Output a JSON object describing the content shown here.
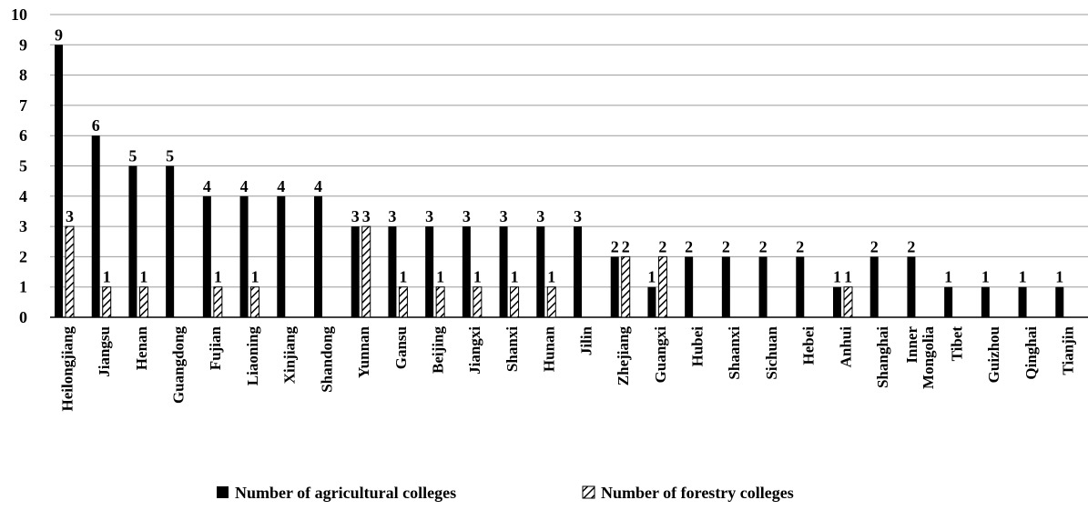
{
  "chart_data": {
    "type": "bar",
    "title": "",
    "xlabel": "",
    "ylabel": "",
    "ylim": [
      0,
      10
    ],
    "yticks": [
      0,
      1,
      2,
      3,
      4,
      5,
      6,
      7,
      8,
      9,
      10
    ],
    "grid": "horizontal",
    "legend_position": "bottom",
    "categories": [
      "Heilongjiang",
      "Jiangsu",
      "Henan",
      "Guangdong",
      "Fujian",
      "Liaoning",
      "Xinjiang",
      "Shandong",
      "Yunnan",
      "Gansu",
      "Beijing",
      "Jiangxi",
      "Shanxi",
      "Hunan",
      "Jilin",
      "Zhejiang",
      "Guangxi",
      "Hubei",
      "Shaanxi",
      "Sichuan",
      "Hebei",
      "Anhui",
      "Shanghai",
      "Inner Mongolia",
      "Tibet",
      "Guizhou",
      "Qinghai",
      "Tianjin"
    ],
    "series": [
      {
        "name": "Number of agricultural colleges",
        "pattern": "solid",
        "color": "#000000",
        "values": [
          9,
          6,
          5,
          5,
          4,
          4,
          4,
          4,
          3,
          3,
          3,
          3,
          3,
          3,
          3,
          2,
          1,
          2,
          2,
          2,
          2,
          1,
          2,
          2,
          1,
          1,
          1,
          1
        ]
      },
      {
        "name": "Number of forestry colleges",
        "pattern": "diagonal-hatch",
        "color": "#000000",
        "values": [
          3,
          1,
          1,
          0,
          1,
          1,
          0,
          0,
          3,
          1,
          1,
          1,
          1,
          1,
          0,
          2,
          2,
          0,
          0,
          0,
          0,
          1,
          0,
          0,
          0,
          0,
          0,
          0
        ]
      }
    ]
  }
}
